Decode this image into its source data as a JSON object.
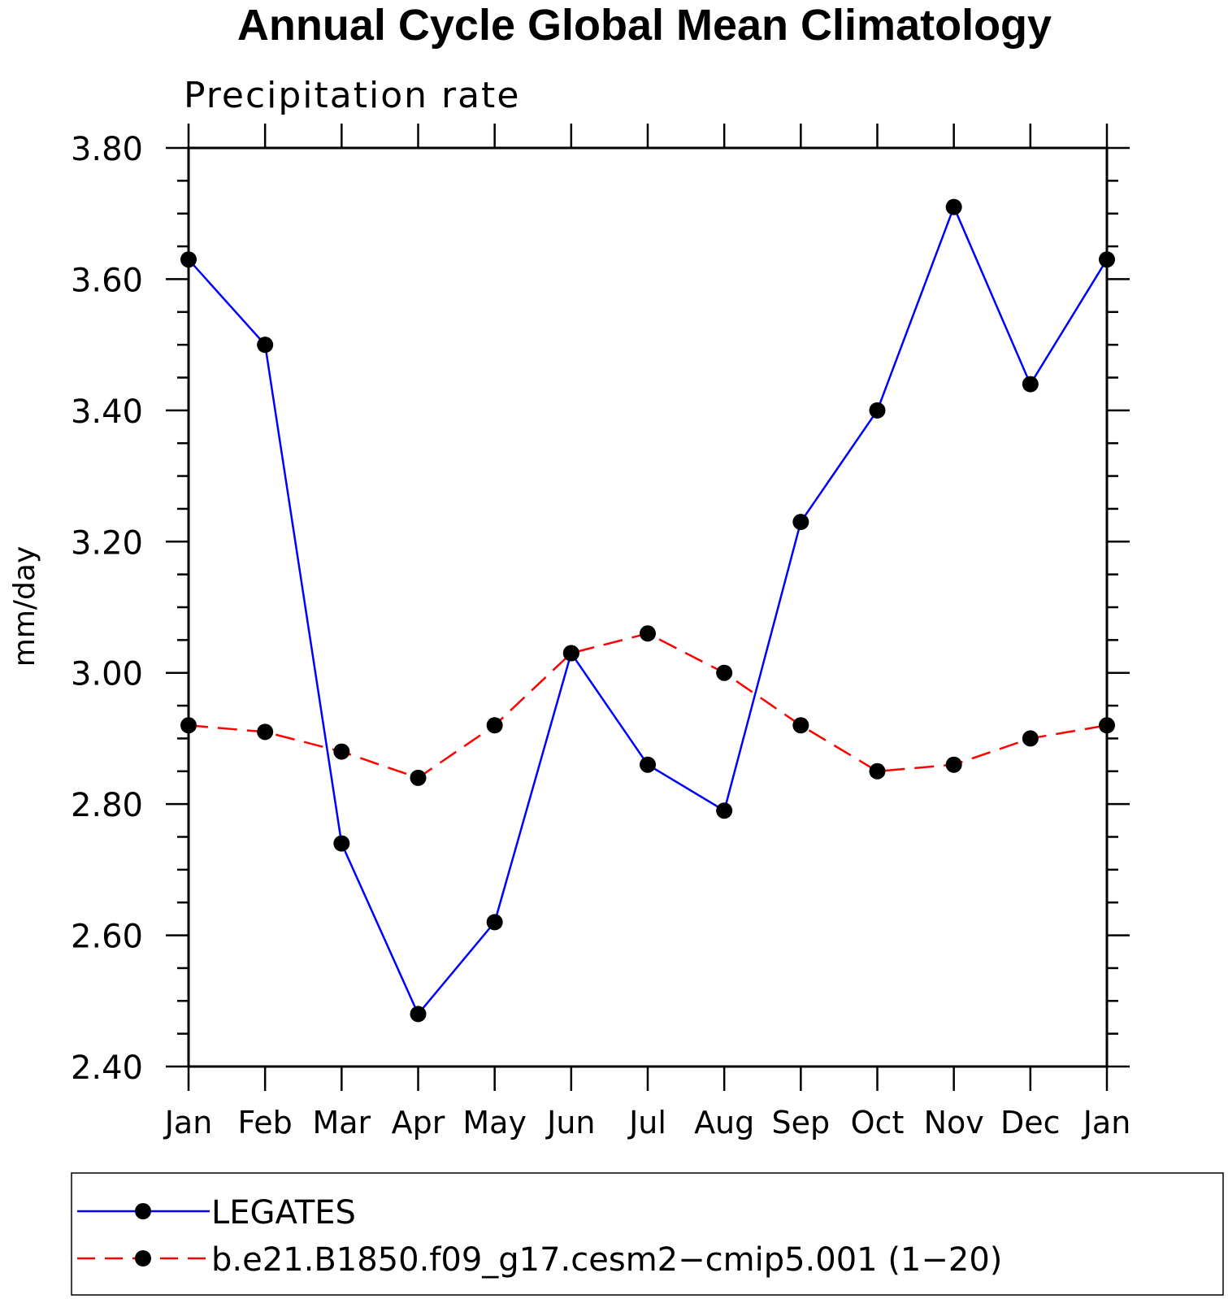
{
  "chart_data": {
    "type": "line",
    "title": "Annual Cycle Global Mean Climatology",
    "subtitle": "Precipitation rate",
    "xlabel": "",
    "ylabel": "mm/day",
    "categories": [
      "Jan",
      "Feb",
      "Mar",
      "Apr",
      "May",
      "Jun",
      "Jul",
      "Aug",
      "Sep",
      "Oct",
      "Nov",
      "Dec",
      "Jan"
    ],
    "ylim": [
      2.4,
      3.8
    ],
    "yticks": [
      "2.40",
      "2.60",
      "2.80",
      "3.00",
      "3.20",
      "3.40",
      "3.60",
      "3.80"
    ],
    "ytick_values": [
      2.4,
      2.6,
      2.8,
      3.0,
      3.2,
      3.4,
      3.6,
      3.8
    ],
    "grid": false,
    "legend_position": "bottom",
    "series": [
      {
        "name": "LEGATES",
        "color": "#0000ff",
        "dash": "solid",
        "values": [
          3.63,
          3.5,
          2.74,
          2.48,
          2.62,
          3.03,
          2.86,
          2.79,
          3.23,
          3.4,
          3.71,
          3.44,
          3.63
        ]
      },
      {
        "name": "b.e21.B1850.f09_g17.cesm2−cmip5.001 (1−20)",
        "color": "#ff0000",
        "dash": "dashed",
        "values": [
          2.92,
          2.91,
          2.88,
          2.84,
          2.92,
          3.03,
          3.06,
          3.0,
          2.92,
          2.85,
          2.86,
          2.9,
          2.92
        ]
      }
    ]
  }
}
